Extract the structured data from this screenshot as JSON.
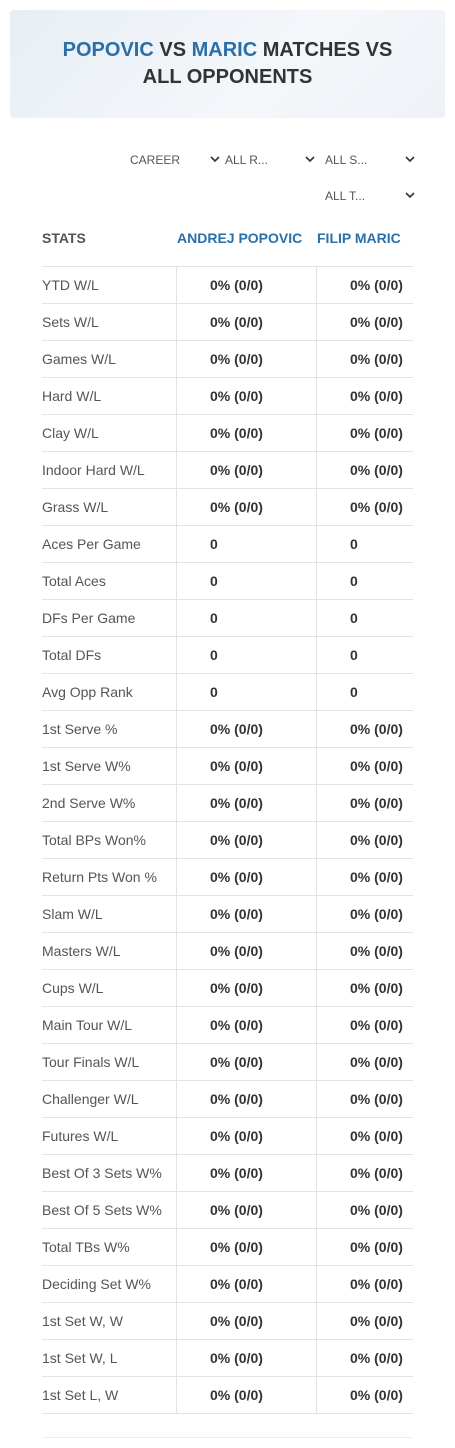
{
  "header": {
    "title_parts": [
      "POPOVIC",
      " VS ",
      "MARIC",
      " MATCHES VS",
      "ALL OPPONENTS"
    ]
  },
  "filters": [
    "CAREER",
    "ALL R...",
    "ALL S...",
    "ALL T..."
  ],
  "table": {
    "columns": [
      "STATS",
      "ANDREJ POPOVIC",
      "FILIP MARIC"
    ],
    "rows": [
      [
        "YTD W/L",
        "0% (0/0)",
        "0% (0/0)"
      ],
      [
        "Sets W/L",
        "0% (0/0)",
        "0% (0/0)"
      ],
      [
        "Games W/L",
        "0% (0/0)",
        "0% (0/0)"
      ],
      [
        "Hard W/L",
        "0% (0/0)",
        "0% (0/0)"
      ],
      [
        "Clay W/L",
        "0% (0/0)",
        "0% (0/0)"
      ],
      [
        "Indoor Hard W/L",
        "0% (0/0)",
        "0% (0/0)"
      ],
      [
        "Grass W/L",
        "0% (0/0)",
        "0% (0/0)"
      ],
      [
        "Aces Per Game",
        "0",
        "0"
      ],
      [
        "Total Aces",
        "0",
        "0"
      ],
      [
        "DFs Per Game",
        "0",
        "0"
      ],
      [
        "Total DFs",
        "0",
        "0"
      ],
      [
        "Avg Opp Rank",
        "0",
        "0"
      ],
      [
        "1st Serve %",
        "0% (0/0)",
        "0% (0/0)"
      ],
      [
        "1st Serve W%",
        "0% (0/0)",
        "0% (0/0)"
      ],
      [
        "2nd Serve W%",
        "0% (0/0)",
        "0% (0/0)"
      ],
      [
        "Total BPs Won%",
        "0% (0/0)",
        "0% (0/0)"
      ],
      [
        "Return Pts Won %",
        "0% (0/0)",
        "0% (0/0)"
      ],
      [
        "Slam W/L",
        "0% (0/0)",
        "0% (0/0)"
      ],
      [
        "Masters W/L",
        "0% (0/0)",
        "0% (0/0)"
      ],
      [
        "Cups W/L",
        "0% (0/0)",
        "0% (0/0)"
      ],
      [
        "Main Tour W/L",
        "0% (0/0)",
        "0% (0/0)"
      ],
      [
        "Tour Finals W/L",
        "0% (0/0)",
        "0% (0/0)"
      ],
      [
        "Challenger W/L",
        "0% (0/0)",
        "0% (0/0)"
      ],
      [
        "Futures W/L",
        "0% (0/0)",
        "0% (0/0)"
      ],
      [
        "Best Of 3 Sets W%",
        "0% (0/0)",
        "0% (0/0)"
      ],
      [
        "Best Of 5 Sets W%",
        "0% (0/0)",
        "0% (0/0)"
      ],
      [
        "Total TBs W%",
        "0% (0/0)",
        "0% (0/0)"
      ],
      [
        "Deciding Set W%",
        "0% (0/0)",
        "0% (0/0)"
      ],
      [
        "1st Set W, W",
        "0% (0/0)",
        "0% (0/0)"
      ],
      [
        "1st Set W, L",
        "0% (0/0)",
        "0% (0/0)"
      ],
      [
        "1st Set L, W",
        "0% (0/0)",
        "0% (0/0)"
      ]
    ]
  }
}
